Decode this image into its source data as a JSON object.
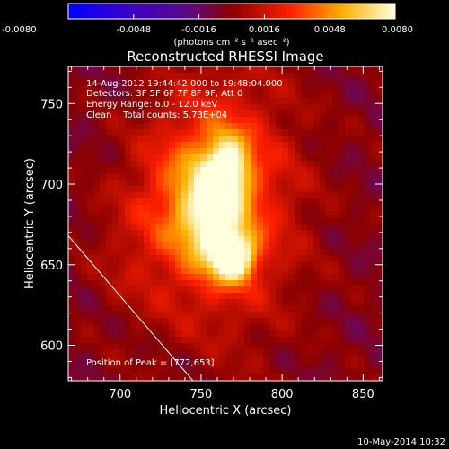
{
  "chart_data": {
    "type": "heatmap",
    "title": "Reconstructed RHESSI Image",
    "xlabel": "Heliocentric X (arcsec)",
    "ylabel": "Heliocentric Y (arcsec)",
    "xlim": [
      668,
      862
    ],
    "ylim": [
      578,
      773
    ],
    "xticks": [
      700,
      750,
      800,
      850
    ],
    "yticks": [
      600,
      650,
      700,
      750
    ],
    "colorbar": {
      "range": [
        -0.008,
        0.008
      ],
      "ticks": [
        "-0.0080",
        "-0.0048",
        "-0.0016",
        "0.0016",
        "0.0048",
        "0.0080"
      ],
      "unit_label": "(photons cm⁻² s⁻¹ asec⁻²)"
    },
    "info_lines": [
      "14-Aug-2012 19:44:42.000 to 19:48:04.000",
      "Detectors: 3F 5F 6F 7F 8F 9F, Att 0",
      "Energy Range: 6.0 - 12.0 keV",
      "Clean    Total counts: 5.73E+04"
    ],
    "peak_label": "Position of Peak = [772,653]",
    "peak": [
      772,
      653
    ],
    "sources": [
      {
        "x": 766,
        "y": 710,
        "sx": 9,
        "sy": 14,
        "amp": 0.0055
      },
      {
        "x": 770,
        "y": 655,
        "sx": 9,
        "sy": 10,
        "amp": 0.0075
      },
      {
        "x": 756,
        "y": 680,
        "sx": 13,
        "sy": 22,
        "amp": 0.0045
      },
      {
        "x": 764,
        "y": 690,
        "sx": 32,
        "sy": 55,
        "amp": 0.0042
      },
      {
        "x": 742,
        "y": 700,
        "sx": 22,
        "sy": 28,
        "amp": 0.0015
      },
      {
        "x": 712,
        "y": 660,
        "sx": 22,
        "sy": 32,
        "amp": 0.0012
      }
    ],
    "limb": [
      [
        668,
        668
      ],
      [
        745,
        578
      ]
    ],
    "timestamp": "10-May-2014 10:32"
  }
}
